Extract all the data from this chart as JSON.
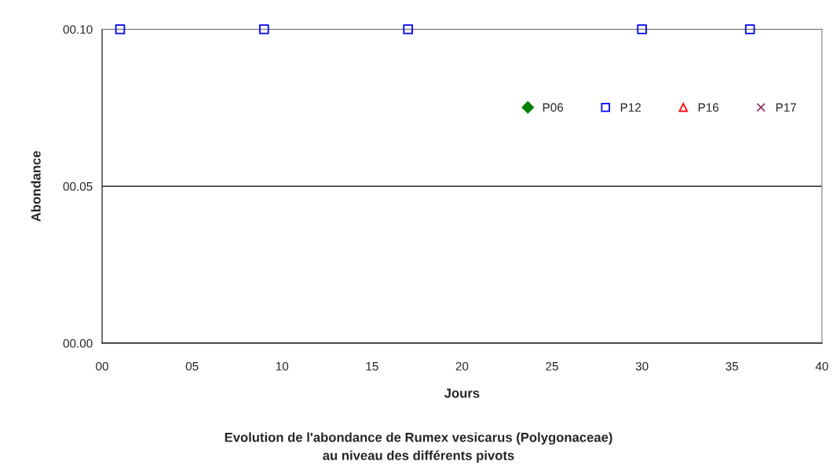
{
  "chart_data": {
    "type": "scatter",
    "title": "Evolution de l'abondance de Rumex vesicarus (Polygonaceae)\nau niveau des différents pivots",
    "xlabel": "Jours",
    "ylabel": "Abondance",
    "xlim": [
      0,
      40
    ],
    "xticks": [
      {
        "value": 0,
        "label": "00"
      },
      {
        "value": 5,
        "label": "05"
      },
      {
        "value": 10,
        "label": "10"
      },
      {
        "value": 15,
        "label": "15"
      },
      {
        "value": 20,
        "label": "20"
      },
      {
        "value": 25,
        "label": "25"
      },
      {
        "value": 30,
        "label": "30"
      },
      {
        "value": 35,
        "label": "35"
      },
      {
        "value": 40,
        "label": "40"
      }
    ],
    "ylim": [
      0,
      0.1
    ],
    "yticks": [
      {
        "value": 0,
        "label": "00.00"
      },
      {
        "value": 0.05,
        "label": "00.05"
      },
      {
        "value": 0.1,
        "label": "00.10"
      }
    ],
    "grid": "y",
    "legend": "top right",
    "series": [
      {
        "name": "P06",
        "color": "#008000",
        "marker": "diamond"
      },
      {
        "name": "P12",
        "color": "#0000ff",
        "marker": "square",
        "x": [
          1,
          9,
          17,
          30,
          36
        ],
        "values": [
          0.1,
          0.1,
          0.1,
          0.1,
          0.1
        ]
      },
      {
        "name": "P16",
        "color": "#ff0000",
        "marker": "triangle"
      },
      {
        "name": "P17",
        "color": "#993366",
        "marker": "cross"
      }
    ]
  }
}
